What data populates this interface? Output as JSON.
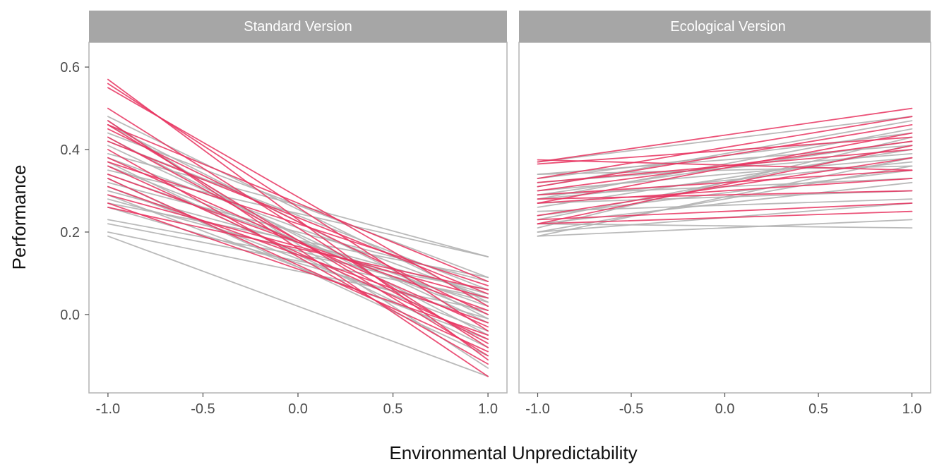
{
  "chart_data": {
    "type": "line",
    "xlabel": "Environmental Unpredictability",
    "ylabel": "Performance",
    "xlim": [
      -1.1,
      1.1
    ],
    "ylim": [
      -0.19,
      0.66
    ],
    "xticks": [
      -1.0,
      -0.5,
      0.0,
      0.5,
      1.0
    ],
    "xtick_labels": [
      "-1.0",
      "-0.5",
      "0.0",
      "0.5",
      "1.0"
    ],
    "yticks": [
      0.0,
      0.2,
      0.4,
      0.6
    ],
    "ytick_labels": [
      "0.0",
      "0.2",
      "0.4",
      "0.6"
    ],
    "grid": false,
    "colors": {
      "highlight": "#e8335f",
      "other": "#b3b3b3",
      "strip": "#a6a6a6"
    },
    "panels": [
      {
        "label": "Standard Version",
        "lines": [
          {
            "group": "highlight",
            "x": [
              -1,
              1
            ],
            "y": [
              0.57,
              -0.11
            ]
          },
          {
            "group": "highlight",
            "x": [
              -1,
              1
            ],
            "y": [
              0.56,
              -0.04
            ]
          },
          {
            "group": "highlight",
            "x": [
              -1,
              1
            ],
            "y": [
              0.55,
              0.02
            ]
          },
          {
            "group": "highlight",
            "x": [
              -1,
              1
            ],
            "y": [
              0.5,
              -0.08
            ]
          },
          {
            "group": "highlight",
            "x": [
              -1,
              1
            ],
            "y": [
              0.47,
              -0.15
            ]
          },
          {
            "group": "highlight",
            "x": [
              -1,
              1
            ],
            "y": [
              0.46,
              0.08
            ]
          },
          {
            "group": "highlight",
            "x": [
              -1,
              1
            ],
            "y": [
              0.46,
              -0.1
            ]
          },
          {
            "group": "highlight",
            "x": [
              -1,
              1
            ],
            "y": [
              0.45,
              0.0
            ]
          },
          {
            "group": "highlight",
            "x": [
              -1,
              1
            ],
            "y": [
              0.43,
              -0.07
            ]
          },
          {
            "group": "highlight",
            "x": [
              -1,
              1
            ],
            "y": [
              0.42,
              0.05
            ]
          },
          {
            "group": "highlight",
            "x": [
              -1,
              1
            ],
            "y": [
              0.4,
              -0.12
            ]
          },
          {
            "group": "highlight",
            "x": [
              -1,
              1
            ],
            "y": [
              0.38,
              -0.03
            ]
          },
          {
            "group": "highlight",
            "x": [
              -1,
              1
            ],
            "y": [
              0.37,
              0.07
            ]
          },
          {
            "group": "highlight",
            "x": [
              -1,
              1
            ],
            "y": [
              0.36,
              -0.06
            ]
          },
          {
            "group": "highlight",
            "x": [
              -1,
              1
            ],
            "y": [
              0.34,
              0.01
            ]
          },
          {
            "group": "highlight",
            "x": [
              -1,
              1
            ],
            "y": [
              0.33,
              -0.09
            ]
          },
          {
            "group": "highlight",
            "x": [
              -1,
              1
            ],
            "y": [
              0.31,
              -0.02
            ]
          },
          {
            "group": "highlight",
            "x": [
              -1,
              1
            ],
            "y": [
              0.29,
              0.04
            ]
          },
          {
            "group": "highlight",
            "x": [
              -1,
              1
            ],
            "y": [
              0.27,
              -0.05
            ]
          },
          {
            "group": "highlight",
            "x": [
              -1,
              1
            ],
            "y": [
              0.26,
              0.06
            ]
          },
          {
            "group": "other",
            "x": [
              -1,
              1
            ],
            "y": [
              0.48,
              0.03
            ]
          },
          {
            "group": "other",
            "x": [
              -1,
              1
            ],
            "y": [
              0.47,
              -0.13
            ]
          },
          {
            "group": "other",
            "x": [
              -1,
              1
            ],
            "y": [
              0.46,
              -0.01
            ]
          },
          {
            "group": "other",
            "x": [
              -1,
              1
            ],
            "y": [
              0.44,
              0.09
            ]
          },
          {
            "group": "other",
            "x": [
              -1,
              1
            ],
            "y": [
              0.43,
              -0.05
            ]
          },
          {
            "group": "other",
            "x": [
              -1,
              1
            ],
            "y": [
              0.42,
              0.06
            ]
          },
          {
            "group": "other",
            "x": [
              -1,
              1
            ],
            "y": [
              0.41,
              -0.02
            ]
          },
          {
            "group": "other",
            "x": [
              -1,
              1
            ],
            "y": [
              0.39,
              0.14
            ]
          },
          {
            "group": "other",
            "x": [
              -1,
              1
            ],
            "y": [
              0.38,
              0.04
            ]
          },
          {
            "group": "other",
            "x": [
              -1,
              1
            ],
            "y": [
              0.37,
              -0.08
            ]
          },
          {
            "group": "other",
            "x": [
              -1,
              1
            ],
            "y": [
              0.36,
              0.0
            ]
          },
          {
            "group": "other",
            "x": [
              -1,
              1
            ],
            "y": [
              0.35,
              0.14
            ]
          },
          {
            "group": "other",
            "x": [
              -1,
              1
            ],
            "y": [
              0.34,
              0.02
            ]
          },
          {
            "group": "other",
            "x": [
              -1,
              1
            ],
            "y": [
              0.33,
              -0.1
            ]
          },
          {
            "group": "other",
            "x": [
              -1,
              1
            ],
            "y": [
              0.32,
              0.08
            ]
          },
          {
            "group": "other",
            "x": [
              -1,
              1
            ],
            "y": [
              0.31,
              -0.04
            ]
          },
          {
            "group": "other",
            "x": [
              -1,
              1
            ],
            "y": [
              0.3,
              0.05
            ]
          },
          {
            "group": "other",
            "x": [
              -1,
              1
            ],
            "y": [
              0.29,
              -0.06
            ]
          },
          {
            "group": "other",
            "x": [
              -1,
              1
            ],
            "y": [
              0.28,
              0.03
            ]
          },
          {
            "group": "other",
            "x": [
              -1,
              1
            ],
            "y": [
              0.27,
              0.09
            ]
          },
          {
            "group": "other",
            "x": [
              -1,
              1
            ],
            "y": [
              0.26,
              -0.01
            ]
          },
          {
            "group": "other",
            "x": [
              -1,
              1
            ],
            "y": [
              0.23,
              0.06
            ]
          },
          {
            "group": "other",
            "x": [
              -1,
              1
            ],
            "y": [
              0.22,
              0.04
            ]
          },
          {
            "group": "other",
            "x": [
              -1,
              1
            ],
            "y": [
              0.2,
              0.01
            ]
          },
          {
            "group": "other",
            "x": [
              -1,
              1
            ],
            "y": [
              0.19,
              -0.15
            ]
          }
        ]
      },
      {
        "label": "Ecological Version",
        "lines": [
          {
            "group": "other",
            "x": [
              -1,
              1
            ],
            "y": [
              0.37,
              0.48
            ]
          },
          {
            "group": "other",
            "x": [
              -1,
              1
            ],
            "y": [
              0.34,
              0.41
            ]
          },
          {
            "group": "other",
            "x": [
              -1,
              1
            ],
            "y": [
              0.34,
              0.36
            ]
          },
          {
            "group": "other",
            "x": [
              -1,
              1
            ],
            "y": [
              0.33,
              0.44
            ]
          },
          {
            "group": "other",
            "x": [
              -1,
              1
            ],
            "y": [
              0.32,
              0.39
            ]
          },
          {
            "group": "other",
            "x": [
              -1,
              1
            ],
            "y": [
              0.31,
              0.47
            ]
          },
          {
            "group": "other",
            "x": [
              -1,
              1
            ],
            "y": [
              0.3,
              0.38
            ]
          },
          {
            "group": "other",
            "x": [
              -1,
              1
            ],
            "y": [
              0.29,
              0.42
            ]
          },
          {
            "group": "other",
            "x": [
              -1,
              1
            ],
            "y": [
              0.29,
              0.33
            ]
          },
          {
            "group": "other",
            "x": [
              -1,
              1
            ],
            "y": [
              0.28,
              0.45
            ]
          },
          {
            "group": "other",
            "x": [
              -1,
              1
            ],
            "y": [
              0.28,
              0.37
            ]
          },
          {
            "group": "other",
            "x": [
              -1,
              1
            ],
            "y": [
              0.27,
              0.3
            ]
          },
          {
            "group": "other",
            "x": [
              -1,
              1
            ],
            "y": [
              0.26,
              0.4
            ]
          },
          {
            "group": "other",
            "x": [
              -1,
              1
            ],
            "y": [
              0.25,
              0.28
            ]
          },
          {
            "group": "other",
            "x": [
              -1,
              1
            ],
            "y": [
              0.24,
              0.35
            ]
          },
          {
            "group": "other",
            "x": [
              -1,
              1
            ],
            "y": [
              0.23,
              0.41
            ]
          },
          {
            "group": "other",
            "x": [
              -1,
              1
            ],
            "y": [
              0.22,
              0.32
            ]
          },
          {
            "group": "other",
            "x": [
              -1,
              1
            ],
            "y": [
              0.22,
              0.21
            ]
          },
          {
            "group": "other",
            "x": [
              -1,
              1
            ],
            "y": [
              0.21,
              0.43
            ]
          },
          {
            "group": "other",
            "x": [
              -1,
              1
            ],
            "y": [
              0.2,
              0.36
            ]
          },
          {
            "group": "other",
            "x": [
              -1,
              1
            ],
            "y": [
              0.2,
              0.27
            ]
          },
          {
            "group": "other",
            "x": [
              -1,
              1
            ],
            "y": [
              0.19,
              0.38
            ]
          },
          {
            "group": "other",
            "x": [
              -1,
              1
            ],
            "y": [
              0.19,
              0.23
            ]
          },
          {
            "group": "highlight",
            "x": [
              -1,
              1
            ],
            "y": [
              0.375,
              0.35
            ]
          },
          {
            "group": "highlight",
            "x": [
              -1,
              1
            ],
            "y": [
              0.37,
              0.5
            ]
          },
          {
            "group": "highlight",
            "x": [
              -1,
              1
            ],
            "y": [
              0.365,
              0.43
            ]
          },
          {
            "group": "highlight",
            "x": [
              -1,
              1
            ],
            "y": [
              0.33,
              0.48
            ]
          },
          {
            "group": "highlight",
            "x": [
              -1,
              1
            ],
            "y": [
              0.32,
              0.4
            ]
          },
          {
            "group": "highlight",
            "x": [
              -1,
              1
            ],
            "y": [
              0.31,
              0.46
            ]
          },
          {
            "group": "highlight",
            "x": [
              -1,
              1
            ],
            "y": [
              0.3,
              0.42
            ]
          },
          {
            "group": "highlight",
            "x": [
              -1,
              1
            ],
            "y": [
              0.29,
              0.35
            ]
          },
          {
            "group": "highlight",
            "x": [
              -1,
              1
            ],
            "y": [
              0.28,
              0.3
            ]
          },
          {
            "group": "highlight",
            "x": [
              -1,
              1
            ],
            "y": [
              0.27,
              0.44
            ]
          },
          {
            "group": "highlight",
            "x": [
              -1,
              1
            ],
            "y": [
              0.27,
              0.33
            ]
          },
          {
            "group": "highlight",
            "x": [
              -1,
              1
            ],
            "y": [
              0.24,
              0.38
            ]
          },
          {
            "group": "highlight",
            "x": [
              -1,
              1
            ],
            "y": [
              0.23,
              0.27
            ]
          },
          {
            "group": "highlight",
            "x": [
              -1,
              1
            ],
            "y": [
              0.22,
              0.25
            ]
          },
          {
            "group": "highlight",
            "x": [
              -1,
              1
            ],
            "y": [
              0.22,
              0.41
            ]
          }
        ]
      }
    ]
  }
}
